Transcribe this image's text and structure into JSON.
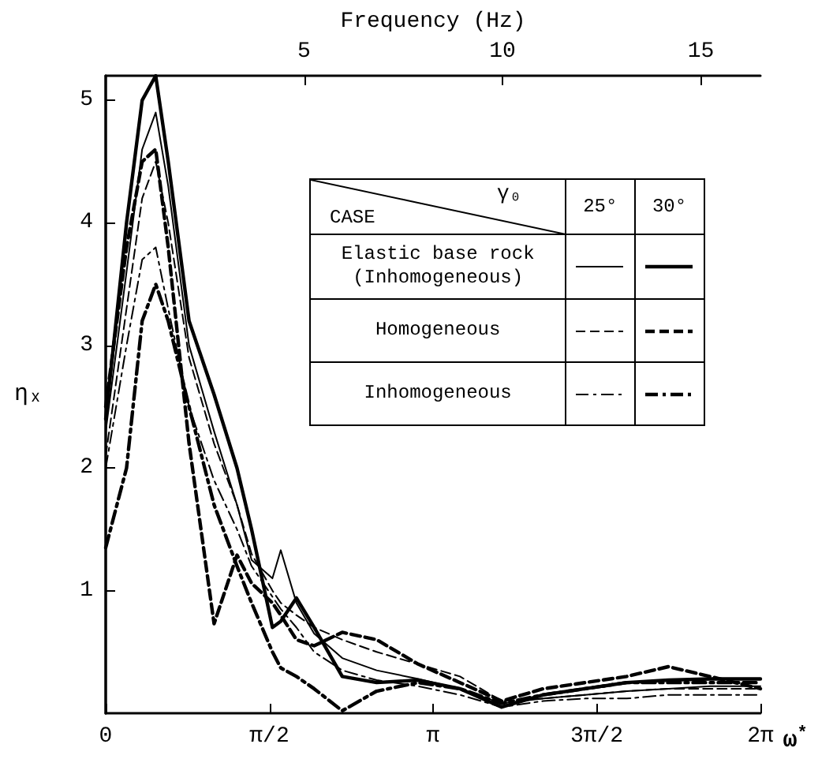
{
  "chart_data": {
    "type": "line",
    "xlabel": "ω$^{*}$",
    "ylabel": "ηₓ",
    "x2label": "Frequency (Hz)",
    "x": [
      0,
      0.2,
      0.35,
      0.48,
      0.6,
      0.8,
      1.04,
      1.26,
      1.4,
      1.6,
      1.68,
      1.83,
      2.0,
      2.27,
      2.6,
      3.0,
      3.4,
      3.8,
      4.2,
      4.6,
      5.0,
      5.4,
      5.8,
      6.2832
    ],
    "series": [
      {
        "color": "#000000",
        "line_style": "solid",
        "values": [
          2.3,
          3.6,
          4.6,
          4.9,
          4.3,
          3.0,
          2.3,
          1.7,
          1.25,
          1.1,
          1.33,
          0.9,
          0.65,
          0.45,
          0.35,
          0.28,
          0.2,
          0.08,
          0.12,
          0.15,
          0.18,
          0.2,
          0.22,
          0.22
        ]
      },
      {
        "color": "#000000",
        "line_style": "solid",
        "values": [
          2.4,
          4.0,
          5.0,
          5.2,
          4.5,
          3.2,
          2.6,
          2.0,
          1.5,
          0.7,
          0.75,
          0.94,
          0.7,
          0.3,
          0.25,
          0.27,
          0.2,
          0.05,
          0.15,
          0.2,
          0.25,
          0.27,
          0.28,
          0.28
        ]
      },
      {
        "color": "#000000",
        "line_style": "dashed",
        "values": [
          2.1,
          3.3,
          4.2,
          4.5,
          4.0,
          2.9,
          2.2,
          1.7,
          1.3,
          1.0,
          0.9,
          0.8,
          0.7,
          0.6,
          0.5,
          0.4,
          0.3,
          0.1,
          0.12,
          0.15,
          0.18,
          0.2,
          0.2,
          0.2
        ]
      },
      {
        "color": "#000000",
        "line_style": "dashed",
        "values": [
          2.5,
          3.8,
          4.5,
          4.6,
          3.8,
          2.2,
          0.73,
          1.29,
          1.06,
          0.9,
          0.8,
          0.6,
          0.55,
          0.66,
          0.6,
          0.4,
          0.25,
          0.1,
          0.2,
          0.25,
          0.3,
          0.38,
          0.3,
          0.2
        ]
      },
      {
        "color": "#000000",
        "line_style": "dashdot",
        "values": [
          2.0,
          3.0,
          3.7,
          3.8,
          3.3,
          2.5,
          1.9,
          1.5,
          1.2,
          0.95,
          0.85,
          0.7,
          0.5,
          0.35,
          0.27,
          0.22,
          0.15,
          0.05,
          0.1,
          0.12,
          0.12,
          0.15,
          0.15,
          0.15
        ]
      },
      {
        "color": "#000000",
        "line_style": "dashdot",
        "values": [
          1.35,
          2.0,
          3.2,
          3.5,
          3.2,
          2.5,
          1.7,
          1.2,
          0.9,
          0.5,
          0.37,
          0.3,
          0.2,
          0.02,
          0.18,
          0.25,
          0.2,
          0.08,
          0.15,
          0.2,
          0.25,
          0.25,
          0.25,
          0.25
        ]
      }
    ],
    "xlim": [
      0,
      6.2832
    ],
    "xticks": [
      0,
      {
        "value": 1.5708,
        "label": "π/2"
      },
      {
        "value": 3.1416,
        "label": "π"
      },
      {
        "value": 4.7124,
        "label": "3π/2"
      },
      {
        "value": 6.2832,
        "label": "2π"
      }
    ],
    "ylim": [
      0,
      5.2
    ],
    "yticks": [
      1,
      2,
      3,
      4,
      5
    ],
    "x2lim": [
      0,
      16.5
    ],
    "x2ticks": [
      5,
      10,
      15
    ],
    "grid": false,
    "marker": "none",
    "annotations": [
      "CASE",
      "γ₀",
      "25°",
      "30°",
      "Elastic base rock\n(Inhomogeneous)",
      "Homogeneous",
      "Inhomogeneous"
    ]
  }
}
